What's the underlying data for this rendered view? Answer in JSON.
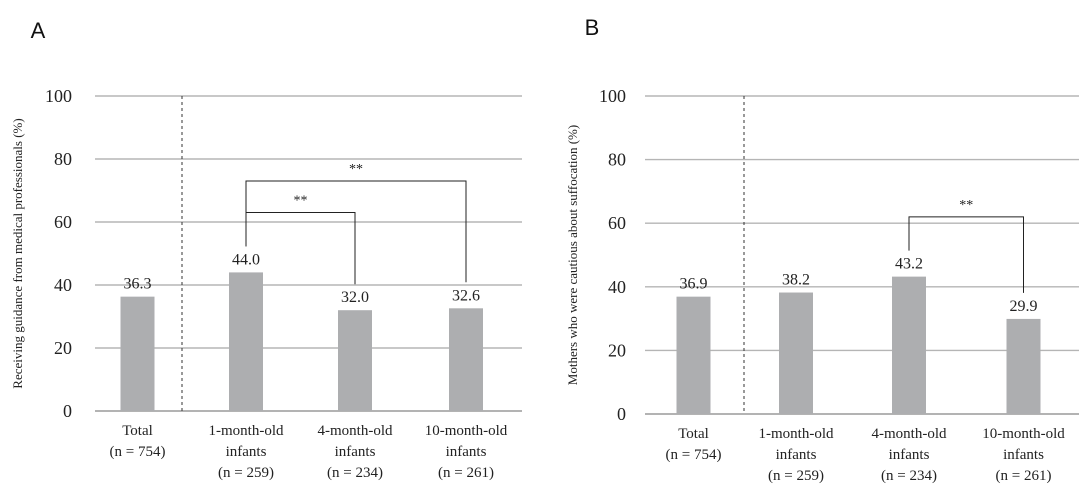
{
  "chart_data": [
    {
      "type": "bar",
      "panel": "A",
      "ylabel": "Receiving guidance from medical professionals (%)",
      "ylim": [
        0,
        100
      ],
      "yticks": [
        0,
        20,
        40,
        60,
        80,
        100
      ],
      "grid": true,
      "categories": [
        [
          "Total",
          "(n = 754)"
        ],
        [
          "1-month-old",
          "infants",
          "(n = 259)"
        ],
        [
          "4-month-old",
          "infants",
          "(n = 234)"
        ],
        [
          "10-month-old",
          "infants",
          "(n = 261)"
        ]
      ],
      "values": [
        36.3,
        44.0,
        32.0,
        32.6
      ],
      "value_labels": [
        "36.3",
        "44.0",
        "32.0",
        "32.6"
      ],
      "color": "#adaeb0",
      "separator_after_category": 0,
      "significance": [
        {
          "from": 1,
          "to": 3,
          "label": "**",
          "level": 73
        },
        {
          "from": 1,
          "to": 2,
          "label": "**",
          "level": 63
        }
      ]
    },
    {
      "type": "bar",
      "panel": "B",
      "ylabel": "Mothers who were cautious about suffocation (%)",
      "ylim": [
        0,
        100
      ],
      "yticks": [
        0,
        20,
        40,
        60,
        80,
        100
      ],
      "grid": true,
      "categories": [
        [
          "Total",
          "(n = 754)"
        ],
        [
          "1-month-old",
          "infants",
          "(n = 259)"
        ],
        [
          "4-month-old",
          "infants",
          "(n = 234)"
        ],
        [
          "10-month-old",
          "infants",
          "(n = 261)"
        ]
      ],
      "values": [
        36.9,
        38.2,
        43.2,
        29.9
      ],
      "value_labels": [
        "36.9",
        "38.2",
        "43.2",
        "29.9"
      ],
      "color": "#adaeb0",
      "separator_after_category": 0,
      "significance": [
        {
          "from": 2,
          "to": 3,
          "label": "**",
          "level": 62
        }
      ]
    }
  ]
}
